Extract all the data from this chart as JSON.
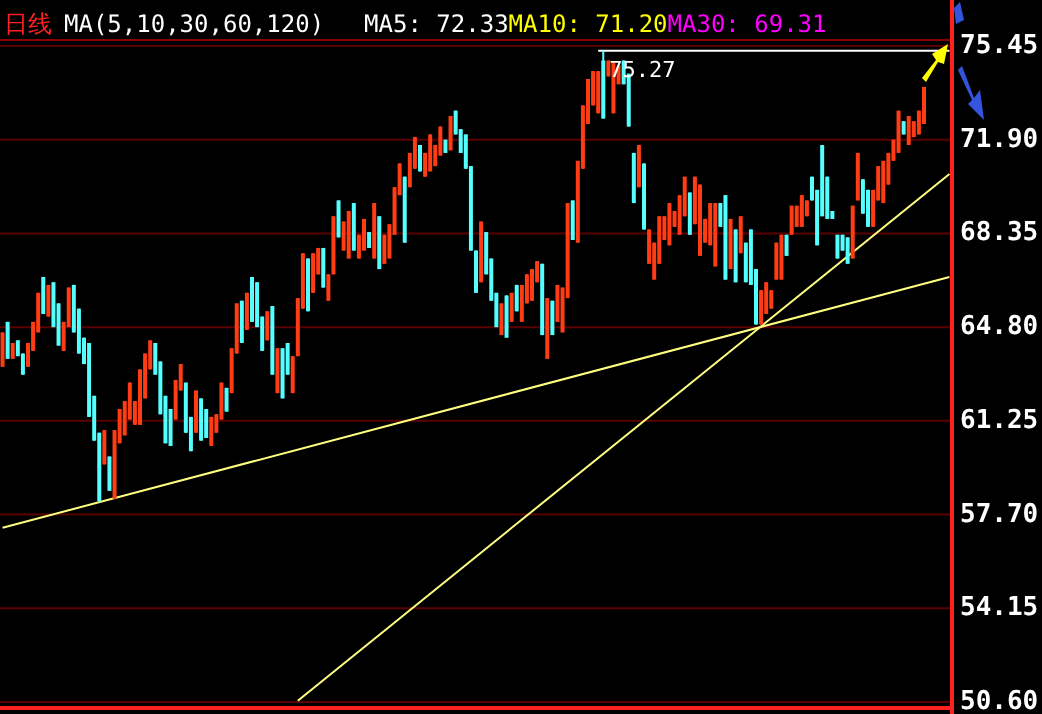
{
  "chart_data": {
    "type": "candlestick",
    "title": "日线",
    "subtitle": "MA(5,10,30,60,120)",
    "annotations": [
      "MA5: 72.33",
      "MA10: 71.20",
      "MA30: 69.31",
      {
        "text": "75.27",
        "y": 75.27
      }
    ],
    "categories": [
      null,
      null,
      null,
      null,
      null,
      null,
      null,
      null,
      null,
      null,
      null,
      null,
      null,
      null,
      null,
      null,
      null,
      null,
      null,
      null,
      null,
      null,
      null,
      null,
      null,
      null,
      null,
      null,
      null,
      null,
      null,
      null,
      null,
      null,
      null,
      null,
      null,
      null,
      null,
      null,
      null,
      null,
      null,
      null,
      null,
      null,
      null,
      null,
      null,
      null,
      null,
      null,
      null,
      null,
      null,
      null,
      null,
      null,
      null,
      null,
      null,
      null,
      null,
      null,
      null,
      null,
      null,
      null,
      null,
      null,
      null,
      null,
      null,
      null,
      null,
      null,
      null,
      null,
      null,
      null,
      null,
      null,
      null,
      null,
      null,
      null,
      null,
      null,
      null,
      null,
      null,
      null,
      null,
      null,
      null,
      null,
      null,
      null,
      null,
      null,
      null,
      null,
      null,
      null,
      null,
      null,
      null,
      null,
      null,
      null,
      null,
      null,
      null,
      null,
      null,
      null,
      null,
      null,
      null,
      null,
      null,
      null,
      null,
      null,
      null,
      null,
      null,
      null,
      null,
      null,
      null,
      null,
      null,
      null,
      null,
      null,
      null,
      null,
      null,
      null,
      null,
      null,
      null,
      null,
      null,
      null,
      null,
      null,
      null,
      null,
      null,
      null,
      null,
      null,
      null,
      null,
      null,
      null,
      null,
      null,
      null,
      null,
      null,
      null,
      null,
      null,
      null,
      null,
      null,
      null,
      null,
      null,
      null,
      null,
      null,
      null,
      null,
      null,
      null,
      null,
      null,
      null,
      null,
      null,
      null,
      null,
      null
    ],
    "ohlc": [
      [
        63.3,
        64.6,
        63.3,
        64.6
      ],
      [
        65.0,
        65.0,
        63.6,
        63.6
      ],
      [
        63.6,
        64.2,
        63.6,
        64.2
      ],
      [
        64.3,
        64.3,
        63.7,
        63.7
      ],
      [
        63.8,
        63.8,
        63.0,
        63.0
      ],
      [
        63.3,
        64.2,
        63.3,
        64.2
      ],
      [
        63.9,
        65.0,
        63.9,
        65.0
      ],
      [
        64.6,
        66.1,
        64.6,
        66.1
      ],
      [
        66.7,
        66.7,
        65.3,
        65.3
      ],
      [
        65.2,
        66.4,
        65.2,
        66.4
      ],
      [
        66.5,
        66.5,
        64.8,
        64.8
      ],
      [
        65.7,
        65.7,
        64.1,
        64.1
      ],
      [
        63.9,
        65.0,
        63.9,
        65.0
      ],
      [
        64.8,
        66.3,
        64.8,
        66.3
      ],
      [
        66.4,
        66.4,
        64.6,
        64.6
      ],
      [
        65.5,
        65.5,
        63.8,
        63.8
      ],
      [
        64.4,
        64.4,
        63.4,
        63.4
      ],
      [
        64.2,
        64.2,
        61.4,
        61.4
      ],
      [
        62.2,
        62.2,
        60.5,
        60.5
      ],
      [
        60.8,
        60.8,
        58.2,
        58.2
      ],
      [
        59.6,
        60.9,
        59.6,
        60.9
      ],
      [
        59.9,
        59.9,
        58.6,
        58.6
      ],
      [
        58.3,
        60.9,
        58.3,
        60.9
      ],
      [
        60.4,
        61.7,
        60.4,
        61.7
      ],
      [
        60.7,
        62.0,
        60.7,
        62.0
      ],
      [
        61.3,
        62.7,
        61.3,
        62.7
      ],
      [
        61.1,
        62.0,
        61.1,
        62.0
      ],
      [
        61.1,
        63.2,
        61.1,
        63.2
      ],
      [
        62.1,
        63.8,
        62.1,
        63.8
      ],
      [
        63.2,
        64.3,
        63.2,
        64.3
      ],
      [
        64.2,
        64.2,
        63.0,
        63.0
      ],
      [
        63.5,
        63.5,
        61.5,
        61.5
      ],
      [
        62.2,
        62.2,
        60.4,
        60.4
      ],
      [
        61.7,
        61.7,
        60.3,
        60.3
      ],
      [
        61.3,
        62.8,
        61.3,
        62.8
      ],
      [
        62.4,
        63.4,
        62.4,
        63.4
      ],
      [
        62.7,
        62.7,
        60.8,
        60.8
      ],
      [
        61.4,
        61.4,
        60.1,
        60.1
      ],
      [
        60.8,
        62.4,
        60.8,
        62.4
      ],
      [
        62.1,
        62.1,
        60.5,
        60.5
      ],
      [
        61.7,
        61.7,
        60.6,
        60.6
      ],
      [
        60.3,
        61.4,
        60.3,
        61.4
      ],
      [
        60.8,
        61.5,
        60.8,
        61.5
      ],
      [
        61.3,
        62.7,
        61.3,
        62.7
      ],
      [
        62.5,
        62.5,
        61.6,
        61.6
      ],
      [
        62.3,
        64.0,
        62.3,
        64.0
      ],
      [
        63.8,
        65.7,
        63.8,
        65.7
      ],
      [
        65.8,
        65.8,
        64.2,
        64.2
      ],
      [
        64.7,
        66.1,
        64.7,
        66.1
      ],
      [
        66.7,
        66.7,
        65.0,
        65.0
      ],
      [
        66.5,
        66.5,
        64.8,
        64.8
      ],
      [
        65.2,
        65.2,
        63.9,
        63.9
      ],
      [
        64.3,
        65.4,
        64.3,
        65.4
      ],
      [
        65.6,
        65.6,
        63.0,
        63.0
      ],
      [
        62.3,
        64.0,
        62.3,
        64.0
      ],
      [
        64.0,
        64.0,
        62.1,
        62.1
      ],
      [
        64.2,
        64.2,
        63.0,
        63.0
      ],
      [
        62.3,
        63.7,
        62.3,
        63.7
      ],
      [
        63.7,
        65.9,
        63.7,
        65.9
      ],
      [
        65.5,
        67.6,
        65.5,
        67.6
      ],
      [
        67.4,
        67.4,
        65.4,
        65.4
      ],
      [
        66.1,
        67.6,
        66.1,
        67.6
      ],
      [
        66.8,
        67.8,
        66.8,
        67.8
      ],
      [
        67.8,
        67.8,
        66.3,
        66.3
      ],
      [
        65.8,
        66.8,
        65.8,
        66.8
      ],
      [
        66.8,
        69.0,
        66.8,
        69.0
      ],
      [
        69.6,
        69.6,
        68.2,
        68.2
      ],
      [
        67.7,
        68.8,
        67.7,
        68.8
      ],
      [
        67.4,
        69.2,
        67.4,
        69.2
      ],
      [
        69.5,
        69.5,
        67.7,
        67.7
      ],
      [
        67.4,
        68.3,
        67.4,
        68.3
      ],
      [
        67.7,
        68.9,
        67.7,
        68.9
      ],
      [
        68.4,
        68.4,
        67.8,
        67.8
      ],
      [
        67.4,
        69.5,
        67.4,
        69.5
      ],
      [
        69.0,
        69.0,
        67.0,
        67.0
      ],
      [
        67.2,
        68.3,
        67.2,
        68.3
      ],
      [
        67.4,
        68.7,
        67.4,
        68.7
      ],
      [
        68.3,
        70.1,
        68.3,
        70.1
      ],
      [
        69.8,
        71.0,
        69.8,
        71.0
      ],
      [
        70.5,
        70.5,
        68.0,
        68.0
      ],
      [
        70.1,
        71.4,
        70.1,
        71.4
      ],
      [
        70.8,
        72.0,
        70.8,
        72.0
      ],
      [
        71.7,
        71.7,
        70.7,
        70.7
      ],
      [
        70.5,
        71.4,
        70.5,
        71.4
      ],
      [
        70.7,
        72.1,
        70.7,
        72.1
      ],
      [
        70.9,
        71.7,
        70.9,
        71.7
      ],
      [
        71.3,
        72.4,
        71.3,
        72.4
      ],
      [
        71.9,
        71.9,
        71.4,
        71.4
      ],
      [
        71.5,
        72.8,
        71.5,
        72.8
      ],
      [
        73.0,
        73.0,
        72.1,
        72.1
      ],
      [
        72.3,
        72.3,
        71.4,
        71.4
      ],
      [
        72.1,
        72.1,
        70.8,
        70.8
      ],
      [
        70.9,
        70.9,
        67.7,
        67.7
      ],
      [
        67.7,
        67.7,
        66.1,
        66.1
      ],
      [
        66.5,
        68.8,
        66.5,
        68.8
      ],
      [
        68.4,
        68.4,
        66.8,
        66.8
      ],
      [
        67.4,
        67.4,
        65.8,
        65.8
      ],
      [
        66.1,
        66.1,
        64.8,
        64.8
      ],
      [
        64.5,
        65.7,
        64.5,
        65.7
      ],
      [
        66.0,
        66.0,
        64.4,
        64.4
      ],
      [
        65.0,
        66.1,
        65.0,
        66.1
      ],
      [
        66.4,
        66.4,
        65.4,
        65.4
      ],
      [
        65.0,
        66.4,
        65.0,
        66.4
      ],
      [
        65.7,
        66.8,
        65.7,
        66.8
      ],
      [
        65.8,
        67.0,
        65.8,
        67.0
      ],
      [
        66.5,
        67.3,
        66.5,
        67.3
      ],
      [
        67.2,
        67.2,
        64.5,
        64.5
      ],
      [
        63.6,
        65.9,
        63.6,
        65.9
      ],
      [
        65.8,
        65.8,
        64.5,
        64.5
      ],
      [
        65.0,
        66.4,
        65.0,
        66.4
      ],
      [
        64.6,
        66.3,
        64.6,
        66.3
      ],
      [
        65.9,
        69.5,
        65.9,
        69.5
      ],
      [
        69.6,
        69.6,
        68.1,
        68.1
      ],
      [
        68.0,
        71.1,
        68.0,
        71.1
      ],
      [
        70.8,
        73.2,
        70.8,
        73.2
      ],
      [
        72.5,
        74.2,
        72.5,
        74.2
      ],
      [
        73.2,
        74.5,
        73.2,
        74.5
      ],
      [
        72.9,
        74.5,
        72.9,
        74.5
      ],
      [
        74.9,
        75.27,
        72.7,
        72.7
      ],
      [
        74.3,
        74.9,
        74.3,
        74.9
      ],
      [
        72.9,
        74.8,
        72.9,
        74.8
      ],
      [
        74.0,
        74.7,
        74.0,
        74.7
      ],
      [
        74.9,
        74.9,
        74.0,
        74.0
      ],
      [
        74.4,
        74.4,
        72.4,
        72.4
      ],
      [
        71.4,
        71.4,
        69.5,
        69.5
      ],
      [
        70.1,
        71.7,
        70.1,
        71.7
      ],
      [
        71.0,
        71.0,
        68.5,
        68.5
      ],
      [
        67.2,
        68.5,
        67.2,
        68.5
      ],
      [
        66.6,
        68.0,
        66.6,
        68.0
      ],
      [
        67.2,
        69.0,
        67.2,
        69.0
      ],
      [
        68.1,
        69.0,
        68.1,
        69.0
      ],
      [
        67.9,
        69.5,
        67.9,
        69.5
      ],
      [
        68.6,
        69.2,
        68.6,
        69.2
      ],
      [
        68.3,
        69.8,
        68.3,
        69.8
      ],
      [
        69.0,
        70.5,
        69.0,
        70.5
      ],
      [
        69.9,
        69.9,
        68.3,
        68.3
      ],
      [
        68.7,
        70.5,
        68.7,
        70.5
      ],
      [
        67.5,
        70.2,
        67.5,
        70.2
      ],
      [
        68.0,
        68.9,
        68.0,
        68.9
      ],
      [
        67.9,
        69.5,
        67.9,
        69.5
      ],
      [
        67.1,
        69.5,
        67.1,
        69.5
      ],
      [
        69.5,
        69.5,
        68.6,
        68.6
      ],
      [
        69.8,
        69.8,
        66.6,
        66.6
      ],
      [
        67.0,
        68.9,
        67.0,
        68.9
      ],
      [
        68.5,
        68.5,
        66.5,
        66.5
      ],
      [
        67.6,
        69.0,
        67.6,
        69.0
      ],
      [
        68.0,
        68.0,
        66.5,
        66.5
      ],
      [
        68.5,
        68.5,
        66.4,
        66.4
      ],
      [
        67.0,
        67.0,
        64.9,
        64.9
      ],
      [
        64.9,
        66.2,
        64.9,
        66.2
      ],
      [
        65.3,
        66.5,
        65.3,
        66.5
      ],
      [
        65.5,
        66.2,
        65.5,
        66.2
      ],
      [
        66.6,
        68.0,
        66.6,
        68.0
      ],
      [
        66.6,
        68.3,
        66.6,
        68.3
      ],
      [
        68.3,
        68.3,
        67.5,
        67.5
      ],
      [
        68.3,
        69.4,
        68.3,
        69.4
      ],
      [
        68.6,
        69.4,
        68.6,
        69.4
      ],
      [
        68.6,
        69.8,
        68.6,
        69.8
      ],
      [
        69.0,
        69.6,
        69.0,
        69.6
      ],
      [
        70.5,
        70.5,
        69.6,
        69.6
      ],
      [
        70.0,
        70.0,
        67.9,
        67.9
      ],
      [
        71.7,
        71.7,
        69.0,
        69.0
      ],
      [
        70.5,
        70.5,
        68.9,
        68.9
      ],
      [
        69.2,
        69.2,
        68.9,
        68.9
      ],
      [
        68.3,
        68.3,
        67.4,
        67.4
      ],
      [
        68.3,
        68.3,
        67.7,
        67.7
      ],
      [
        68.2,
        68.2,
        67.2,
        67.2
      ],
      [
        67.4,
        69.4,
        67.4,
        69.4
      ],
      [
        69.6,
        71.4,
        69.6,
        71.4
      ],
      [
        70.4,
        70.4,
        69.1,
        69.1
      ],
      [
        70.0,
        70.0,
        68.6,
        68.6
      ],
      [
        68.6,
        70.0,
        68.6,
        70.0
      ],
      [
        69.6,
        70.9,
        69.6,
        70.9
      ],
      [
        69.5,
        71.1,
        69.5,
        71.1
      ],
      [
        70.2,
        71.4,
        70.2,
        71.4
      ],
      [
        71.1,
        71.9,
        71.1,
        71.9
      ],
      [
        71.4,
        73.0,
        71.4,
        73.0
      ],
      [
        72.6,
        72.6,
        72.1,
        72.1
      ],
      [
        71.7,
        72.8,
        71.7,
        72.8
      ],
      [
        72.0,
        72.6,
        72.0,
        72.6
      ],
      [
        72.1,
        73.0,
        72.1,
        73.0
      ],
      [
        72.5,
        73.9,
        72.5,
        73.9
      ],
      null,
      null,
      null,
      null,
      null
    ],
    "series": [
      {
        "type": "line",
        "color": "#ffff80",
        "values": [
          57.2,
          null,
          null,
          null,
          null,
          null,
          null,
          null,
          null,
          null,
          null,
          null,
          null,
          null,
          null,
          null,
          null,
          null,
          null,
          null,
          null,
          null,
          null,
          null,
          null,
          null,
          null,
          null,
          null,
          null,
          null,
          null,
          null,
          null,
          null,
          null,
          null,
          null,
          null,
          null,
          null,
          null,
          null,
          null,
          null,
          null,
          null,
          null,
          null,
          null,
          null,
          null,
          null,
          null,
          null,
          null,
          null,
          null,
          null,
          null,
          null,
          null,
          null,
          null,
          null,
          null,
          null,
          null,
          null,
          null,
          null,
          null,
          null,
          null,
          null,
          null,
          null,
          null,
          null,
          null,
          null,
          null,
          null,
          null,
          null,
          null,
          null,
          null,
          null,
          null,
          null,
          null,
          null,
          null,
          null,
          null,
          null,
          null,
          null,
          null,
          null,
          null,
          null,
          null,
          null,
          null,
          null,
          null,
          null,
          null,
          null,
          null,
          null,
          null,
          null,
          null,
          null,
          null,
          null,
          null,
          null,
          null,
          null,
          null,
          null,
          null,
          null,
          null,
          null,
          null,
          null,
          null,
          null,
          null,
          null,
          null,
          null,
          null,
          null,
          null,
          null,
          null,
          null,
          null,
          null,
          null,
          null,
          null,
          null,
          null,
          null,
          null,
          null,
          null,
          null,
          null,
          null,
          null,
          null,
          null,
          null,
          null,
          null,
          null,
          null,
          null,
          null,
          null,
          null,
          null,
          null,
          null,
          null,
          null,
          null,
          null,
          null,
          null,
          null,
          null,
          null,
          null,
          null,
          null,
          null,
          null,
          66.7
        ]
      },
      {
        "type": "line",
        "color": "#ffff80",
        "values": [
          null,
          null,
          null,
          null,
          null,
          null,
          null,
          null,
          null,
          null,
          null,
          null,
          null,
          null,
          null,
          null,
          null,
          null,
          null,
          null,
          null,
          null,
          null,
          null,
          null,
          null,
          null,
          null,
          null,
          null,
          null,
          null,
          null,
          null,
          null,
          null,
          null,
          null,
          null,
          null,
          null,
          null,
          null,
          null,
          null,
          null,
          null,
          null,
          null,
          null,
          null,
          null,
          null,
          null,
          null,
          null,
          null,
          null,
          50.65,
          null,
          null,
          null,
          null,
          null,
          null,
          null,
          null,
          null,
          null,
          null,
          null,
          null,
          null,
          null,
          null,
          null,
          null,
          null,
          null,
          null,
          null,
          null,
          null,
          null,
          null,
          null,
          null,
          null,
          null,
          null,
          null,
          null,
          null,
          null,
          null,
          null,
          null,
          null,
          null,
          null,
          null,
          null,
          null,
          null,
          null,
          null,
          null,
          null,
          null,
          null,
          null,
          null,
          null,
          null,
          null,
          null,
          null,
          null,
          null,
          null,
          null,
          null,
          null,
          null,
          null,
          null,
          null,
          null,
          null,
          null,
          null,
          null,
          null,
          null,
          null,
          null,
          null,
          null,
          null,
          null,
          null,
          null,
          null,
          null,
          null,
          null,
          null,
          null,
          null,
          null,
          null,
          null,
          null,
          null,
          null,
          null,
          null,
          null,
          null,
          null,
          null,
          null,
          null,
          null,
          null,
          null,
          null,
          null,
          null,
          null,
          null,
          null,
          null,
          null,
          null,
          null,
          null,
          null,
          null,
          null,
          null,
          null,
          null,
          null,
          null,
          null,
          70.6
        ]
      },
      {
        "type": "line",
        "color": "#ffffff",
        "values": [
          null,
          null,
          null,
          null,
          null,
          null,
          null,
          null,
          null,
          null,
          null,
          null,
          null,
          null,
          null,
          null,
          null,
          null,
          null,
          null,
          null,
          null,
          null,
          null,
          null,
          null,
          null,
          null,
          null,
          null,
          null,
          null,
          null,
          null,
          null,
          null,
          null,
          null,
          null,
          null,
          null,
          null,
          null,
          null,
          null,
          null,
          null,
          null,
          null,
          null,
          null,
          null,
          null,
          null,
          null,
          null,
          null,
          null,
          null,
          null,
          null,
          null,
          null,
          null,
          null,
          null,
          null,
          null,
          null,
          null,
          null,
          null,
          null,
          null,
          null,
          null,
          null,
          null,
          null,
          null,
          null,
          null,
          null,
          null,
          null,
          null,
          null,
          null,
          null,
          null,
          null,
          null,
          null,
          null,
          null,
          null,
          null,
          null,
          null,
          null,
          null,
          null,
          null,
          null,
          null,
          null,
          null,
          null,
          null,
          null,
          null,
          null,
          null,
          null,
          null,
          null,
          null,
          75.27,
          null,
          null,
          null,
          null,
          null,
          null,
          null,
          null,
          null,
          null,
          null,
          null,
          null,
          null,
          null,
          null,
          null,
          null,
          null,
          null,
          null,
          null,
          null,
          null,
          null,
          null,
          null,
          null,
          null,
          null,
          null,
          null,
          null,
          null,
          null,
          null,
          null,
          null,
          null,
          null,
          null,
          null,
          null,
          null,
          null,
          null,
          null,
          null,
          null,
          null,
          null,
          null,
          null,
          null,
          null,
          null,
          null,
          null,
          null,
          null,
          null,
          null,
          null,
          null,
          null,
          null,
          null,
          null,
          75.27
        ]
      }
    ],
    "ylim": [
      50.6,
      75.45
    ],
    "yticks": [
      {
        "value": 50.6,
        "label": "50.60"
      },
      {
        "value": 54.15,
        "label": "54.15"
      },
      {
        "value": 57.7,
        "label": "57.70"
      },
      {
        "value": 61.25,
        "label": "61.25"
      },
      {
        "value": 64.8,
        "label": "64.80"
      },
      {
        "value": 68.35,
        "label": "68.35"
      },
      {
        "value": 71.9,
        "label": "71.90"
      },
      {
        "value": 75.45,
        "label": "75.45"
      }
    ],
    "tick_labels": "y",
    "grid": "y"
  }
}
